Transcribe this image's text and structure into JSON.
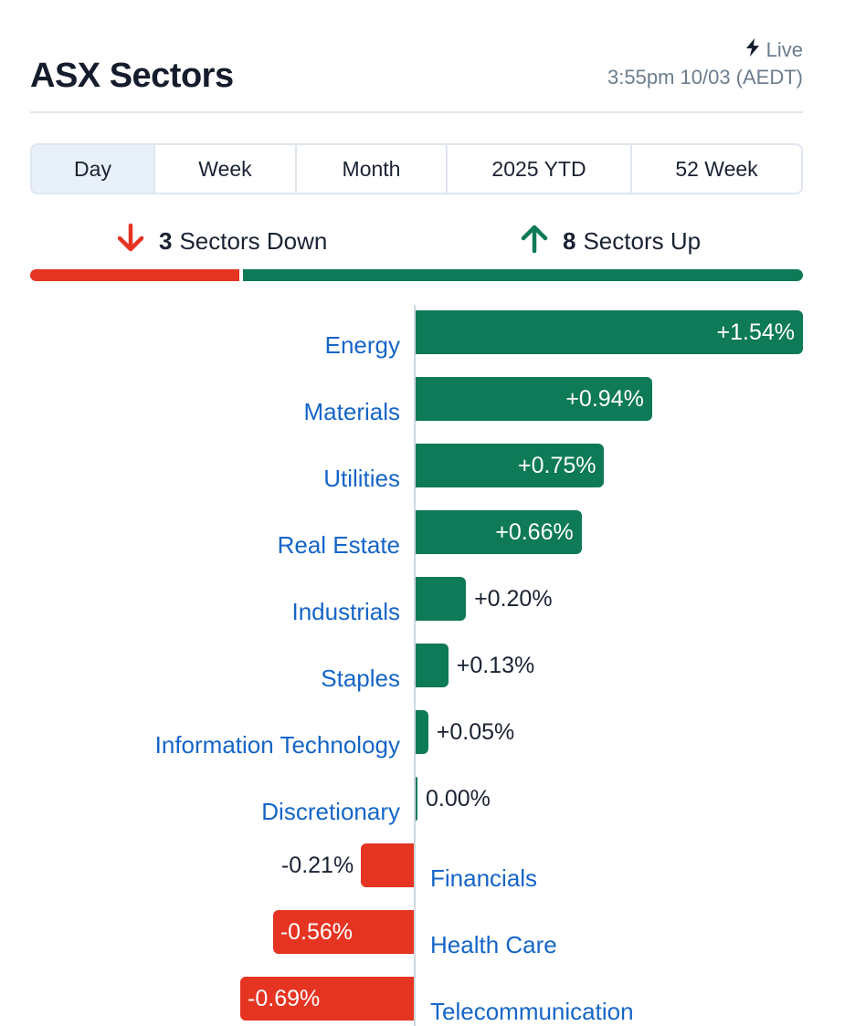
{
  "header": {
    "title": "ASX Sectors",
    "live_label": "Live",
    "timestamp": "3:55pm 10/03 (AEDT)"
  },
  "tabs": [
    {
      "label": "Day",
      "active": true
    },
    {
      "label": "Week",
      "active": false
    },
    {
      "label": "Month",
      "active": false
    },
    {
      "label": "2025 YTD",
      "active": false
    },
    {
      "label": "52 Week",
      "active": false
    }
  ],
  "summary": {
    "down_count": "3",
    "down_label": "Sectors Down",
    "up_count": "8",
    "up_label": "Sectors Up"
  },
  "colors": {
    "up": "#0f7a57",
    "down": "#e63423",
    "link": "#1565c8"
  },
  "chart_data": {
    "type": "bar",
    "categories": [
      "Energy",
      "Materials",
      "Utilities",
      "Real Estate",
      "Industrials",
      "Staples",
      "Information Technology",
      "Discretionary",
      "Financials",
      "Health Care",
      "Telecommunication"
    ],
    "values": [
      1.54,
      0.94,
      0.75,
      0.66,
      0.2,
      0.13,
      0.05,
      0.0,
      -0.21,
      -0.56,
      -0.69
    ],
    "value_labels": [
      "+1.54%",
      "+0.94%",
      "+0.75%",
      "+0.66%",
      "+0.20%",
      "+0.13%",
      "+0.05%",
      "0.00%",
      "-0.21%",
      "-0.56%",
      "-0.69%"
    ]
  }
}
